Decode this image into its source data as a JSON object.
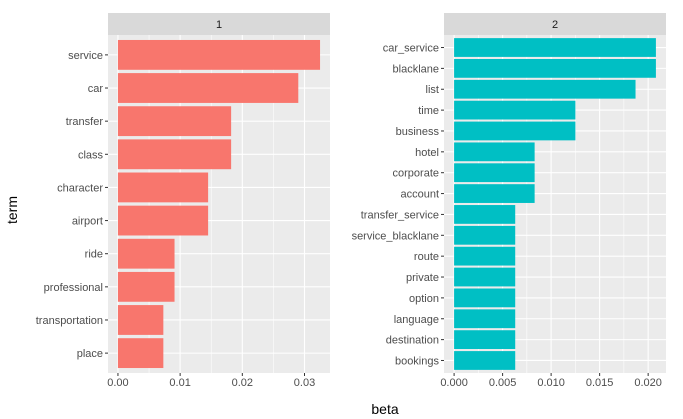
{
  "chart_data": {
    "type": "bar",
    "orientation": "horizontal",
    "xlabel": "beta",
    "ylabel": "term",
    "grid": true,
    "panels": [
      {
        "title": "1",
        "color": "#F8766D",
        "xlim": [
          -0.0016,
          0.0341
        ],
        "xticks": [
          {
            "value": 0,
            "label": "0.00"
          },
          {
            "value": 0.01,
            "label": "0.01"
          },
          {
            "value": 0.02,
            "label": "0.02"
          },
          {
            "value": 0.03,
            "label": "0.03"
          }
        ],
        "categories": [
          "service",
          "car",
          "transfer",
          "class",
          "character",
          "airport",
          "ride",
          "professional",
          "transportation",
          "place"
        ],
        "values": [
          0.0325,
          0.029,
          0.0182,
          0.0182,
          0.0145,
          0.0145,
          0.0091,
          0.0091,
          0.0073,
          0.0073
        ]
      },
      {
        "title": "2",
        "color": "#00BFC4",
        "xlim": [
          -0.00104,
          0.02184
        ],
        "xticks": [
          {
            "value": 0,
            "label": "0.000"
          },
          {
            "value": 0.005,
            "label": "0.005"
          },
          {
            "value": 0.01,
            "label": "0.010"
          },
          {
            "value": 0.015,
            "label": "0.015"
          },
          {
            "value": 0.02,
            "label": "0.020"
          }
        ],
        "categories": [
          "car_service",
          "blacklane",
          "list",
          "time",
          "business",
          "hotel",
          "corporate",
          "account",
          "transfer_service",
          "service_blacklane",
          "route",
          "private",
          "option",
          "language",
          "destination",
          "bookings"
        ],
        "values": [
          0.0208,
          0.0208,
          0.0187,
          0.0125,
          0.0125,
          0.0083,
          0.0083,
          0.0083,
          0.0063,
          0.0063,
          0.0063,
          0.0063,
          0.0063,
          0.0063,
          0.0063,
          0.0063
        ]
      }
    ]
  }
}
